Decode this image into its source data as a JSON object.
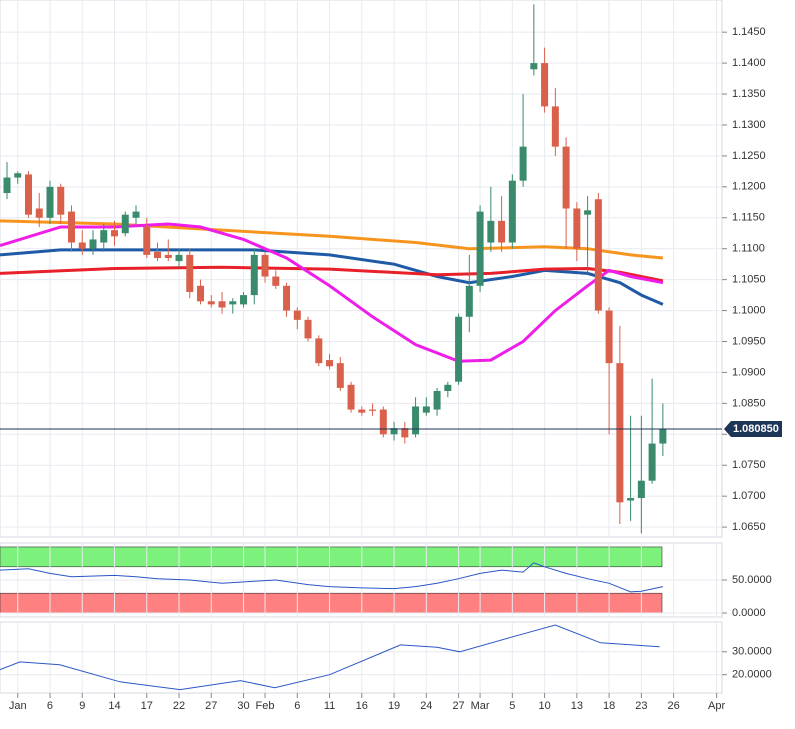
{
  "chart_data": [
    {
      "type": "candlestick",
      "x": [
        0,
        1,
        2,
        3,
        4,
        5,
        6,
        7,
        8,
        9,
        10,
        11,
        12,
        13,
        14,
        15,
        16,
        17,
        18,
        19,
        20,
        21,
        22,
        23,
        24,
        25,
        26,
        27,
        28,
        29,
        30,
        31,
        32,
        33,
        34,
        35,
        36,
        37,
        38,
        39,
        40,
        41,
        42,
        43,
        44,
        45,
        46,
        47,
        48,
        49,
        50,
        51,
        52,
        53,
        54,
        55,
        56,
        57,
        58,
        59,
        60,
        61
      ],
      "open": [
        1.119,
        1.1215,
        1.122,
        1.1165,
        1.115,
        1.12,
        1.116,
        1.111,
        1.11,
        1.111,
        1.113,
        1.1125,
        1.115,
        1.1135,
        1.1095,
        1.109,
        1.108,
        1.109,
        1.104,
        1.1015,
        1.1015,
        1.101,
        1.101,
        1.1025,
        1.109,
        1.1055,
        1.104,
        1.1,
        1.0985,
        1.0955,
        1.092,
        1.0915,
        1.088,
        1.084,
        1.084,
        1.084,
        1.08,
        1.081,
        1.08,
        1.0835,
        1.084,
        1.087,
        1.0885,
        1.099,
        1.104,
        1.111,
        1.1145,
        1.111,
        1.121,
        1.139,
        1.14,
        1.133,
        1.1265,
        1.1165,
        1.1155,
        1.118,
        1.1,
        1.0915,
        1.0693,
        1.0697,
        1.0725,
        1.0785
      ],
      "high": [
        1.124,
        1.1225,
        1.1225,
        1.119,
        1.121,
        1.1205,
        1.117,
        1.113,
        1.113,
        1.114,
        1.1145,
        1.116,
        1.117,
        1.115,
        1.111,
        1.1115,
        1.11,
        1.11,
        1.105,
        1.1025,
        1.103,
        1.102,
        1.103,
        1.11,
        1.1095,
        1.1065,
        1.1045,
        1.1005,
        1.099,
        1.096,
        1.093,
        1.0925,
        1.0885,
        1.0845,
        1.085,
        1.0845,
        1.082,
        1.082,
        1.086,
        1.086,
        1.0875,
        1.0885,
        1.0995,
        1.109,
        1.117,
        1.12,
        1.1185,
        1.122,
        1.135,
        1.1495,
        1.1425,
        1.136,
        1.128,
        1.1175,
        1.1185,
        1.119,
        1.1005,
        1.0975,
        1.083,
        1.083,
        1.089,
        1.085
      ],
      "low": [
        1.118,
        1.1205,
        1.115,
        1.1135,
        1.114,
        1.114,
        1.1095,
        1.109,
        1.109,
        1.1095,
        1.1105,
        1.112,
        1.114,
        1.1085,
        1.108,
        1.108,
        1.107,
        1.102,
        1.101,
        1.1005,
        1.0995,
        1.0995,
        1.1005,
        1.101,
        1.1045,
        1.1035,
        1.099,
        1.097,
        1.095,
        1.091,
        1.0905,
        1.087,
        1.0835,
        1.083,
        1.083,
        1.0795,
        1.079,
        1.0785,
        1.0795,
        1.083,
        1.083,
        1.086,
        1.088,
        1.0965,
        1.103,
        1.1095,
        1.1095,
        1.11,
        1.12,
        1.138,
        1.132,
        1.125,
        1.11,
        1.108,
        1.106,
        1.0995,
        1.08,
        1.0655,
        1.066,
        1.064,
        1.072,
        1.0765
      ],
      "close": [
        1.1215,
        1.1222,
        1.1155,
        1.115,
        1.12,
        1.1155,
        1.111,
        1.11,
        1.1115,
        1.113,
        1.112,
        1.1155,
        1.116,
        1.109,
        1.1085,
        1.1085,
        1.109,
        1.103,
        1.1015,
        1.101,
        1.1005,
        1.1015,
        1.1025,
        1.109,
        1.1055,
        1.104,
        1.1,
        1.0985,
        1.0955,
        1.0915,
        1.091,
        1.0875,
        1.084,
        1.0835,
        1.0838,
        1.08,
        1.081,
        1.0795,
        1.0845,
        1.0845,
        1.087,
        1.088,
        1.099,
        1.104,
        1.116,
        1.1145,
        1.111,
        1.121,
        1.1265,
        1.14,
        1.133,
        1.1265,
        1.1165,
        1.11,
        1.1162,
        1.1,
        1.0915,
        1.069,
        1.0697,
        1.0725,
        1.0785,
        1.0808
      ],
      "up_color": "#3a8a6c",
      "down_color": "#d9604a",
      "series": [
        {
          "color": "#f7941d",
          "x": [
            -0.65,
            10,
            20,
            30,
            38,
            43,
            50,
            54,
            58,
            61
          ],
          "values": [
            1.1145,
            1.114,
            1.113,
            1.112,
            1.111,
            1.11,
            1.1103,
            1.11,
            1.109,
            1.1085
          ]
        },
        {
          "color": "#1f5aa6",
          "x": [
            -0.65,
            5,
            15,
            23,
            30,
            36,
            40,
            43,
            47,
            50,
            54,
            57,
            59,
            61
          ],
          "values": [
            1.109,
            1.1098,
            1.1098,
            1.1098,
            1.109,
            1.1075,
            1.1055,
            1.1045,
            1.1055,
            1.1065,
            1.106,
            1.1045,
            1.1025,
            1.101
          ]
        },
        {
          "color": "#e8202a",
          "x": [
            -0.65,
            10,
            20,
            30,
            40,
            45,
            50,
            54,
            57,
            61
          ],
          "values": [
            1.106,
            1.1068,
            1.107,
            1.1067,
            1.1058,
            1.106,
            1.1067,
            1.1068,
            1.1062,
            1.1048
          ]
        },
        {
          "color": "#ee1de8",
          "x": [
            -0.65,
            5,
            10,
            15,
            18,
            22,
            26,
            30,
            34,
            38,
            42,
            45,
            48,
            51,
            54,
            56,
            58,
            61
          ],
          "values": [
            1.1105,
            1.1135,
            1.1135,
            1.114,
            1.1135,
            1.1115,
            1.1085,
            1.104,
            1.099,
            1.0945,
            1.0918,
            1.092,
            1.095,
            1.1,
            1.104,
            1.1065,
            1.1055,
            1.1045
          ]
        }
      ],
      "last_price": {
        "value": 1.08085,
        "label": "1.080850"
      },
      "last_price_color": "#1d3557",
      "xlim": [
        -0.65,
        66.5
      ],
      "ylim": [
        1.0634,
        1.1502
      ],
      "xticks": [
        {
          "value": 1,
          "label": "Jan"
        },
        {
          "value": 4,
          "label": "6"
        },
        {
          "value": 7,
          "label": "9"
        },
        {
          "value": 10,
          "label": "14"
        },
        {
          "value": 13,
          "label": "17"
        },
        {
          "value": 16,
          "label": "22"
        },
        {
          "value": 19,
          "label": "27"
        },
        {
          "value": 22,
          "label": "30"
        },
        {
          "value": 24,
          "label": "Feb"
        },
        {
          "value": 27,
          "label": "6"
        },
        {
          "value": 30,
          "label": "11"
        },
        {
          "value": 33,
          "label": "16"
        },
        {
          "value": 36,
          "label": "19"
        },
        {
          "value": 39,
          "label": "24"
        },
        {
          "value": 42,
          "label": "27"
        },
        {
          "value": 44,
          "label": "Mar"
        },
        {
          "value": 47,
          "label": "5"
        },
        {
          "value": 50,
          "label": "10"
        },
        {
          "value": 53,
          "label": "13"
        },
        {
          "value": 56,
          "label": "18"
        },
        {
          "value": 59,
          "label": "23"
        },
        {
          "value": 62,
          "label": "26"
        },
        {
          "value": 66,
          "label": "Apr"
        }
      ],
      "yticks": [
        {
          "value": 1.065,
          "label": "1.0650"
        },
        {
          "value": 1.07,
          "label": "1.0700"
        },
        {
          "value": 1.075,
          "label": "1.0750"
        },
        {
          "value": 1.08,
          "label": "1.0800"
        },
        {
          "value": 1.085,
          "label": "1.0850"
        },
        {
          "value": 1.09,
          "label": "1.0900"
        },
        {
          "value": 1.095,
          "label": "1.0950"
        },
        {
          "value": 1.1,
          "label": "1.1000"
        },
        {
          "value": 1.105,
          "label": "1.1050"
        },
        {
          "value": 1.11,
          "label": "1.1100"
        },
        {
          "value": 1.115,
          "label": "1.1150"
        },
        {
          "value": 1.12,
          "label": "1.1200"
        },
        {
          "value": 1.125,
          "label": "1.1250"
        },
        {
          "value": 1.13,
          "label": "1.1300"
        },
        {
          "value": 1.135,
          "label": "1.1350"
        },
        {
          "value": 1.14,
          "label": "1.1400"
        },
        {
          "value": 1.145,
          "label": "1.1450"
        }
      ],
      "grid": true
    },
    {
      "type": "line",
      "series": [
        {
          "color": "#2a56c6",
          "x": [
            -0.65,
            2,
            4,
            6,
            10,
            12,
            14,
            17,
            20,
            23,
            25,
            28,
            30,
            33,
            36,
            38,
            40,
            42,
            44,
            46,
            48,
            49,
            50,
            52,
            54,
            56,
            58,
            59,
            61
          ],
          "values": [
            65,
            67,
            60,
            55,
            57,
            55,
            52,
            50,
            45,
            48,
            50,
            43,
            40,
            38,
            37,
            40,
            45,
            52,
            60,
            65,
            62,
            76,
            70,
            60,
            52,
            45,
            32,
            33,
            40
          ]
        }
      ],
      "bands": [
        {
          "from": 70,
          "to": 100,
          "color": "#7cf27c"
        },
        {
          "from": 0,
          "to": 30,
          "color": "#ff8080"
        }
      ],
      "xlim": [
        -0.65,
        66.5
      ],
      "ylim": [
        -6,
        106
      ],
      "yticks": [
        {
          "value": 0,
          "label": "0.0000"
        },
        {
          "value": 50,
          "label": "50.0000"
        }
      ],
      "grid": true
    },
    {
      "type": "line",
      "series": [
        {
          "color": "#2a56c6",
          "x": [
            -0.65,
            1.2,
            4.9,
            10.5,
            16.1,
            21.7,
            24.9,
            30,
            36.6,
            40,
            42.1,
            47.7,
            51,
            55.2,
            60.7
          ],
          "values": [
            22.2,
            25.6,
            24.3,
            16.9,
            13.5,
            17.4,
            14.3,
            20,
            33,
            32,
            30,
            37.4,
            41.7,
            33.9,
            32.2
          ]
        }
      ],
      "xlim": [
        -0.65,
        66.5
      ],
      "ylim": [
        12,
        43
      ],
      "yticks": [
        {
          "value": 20,
          "label": "20.0000"
        },
        {
          "value": 30,
          "label": "30.0000"
        }
      ],
      "grid": true
    }
  ]
}
